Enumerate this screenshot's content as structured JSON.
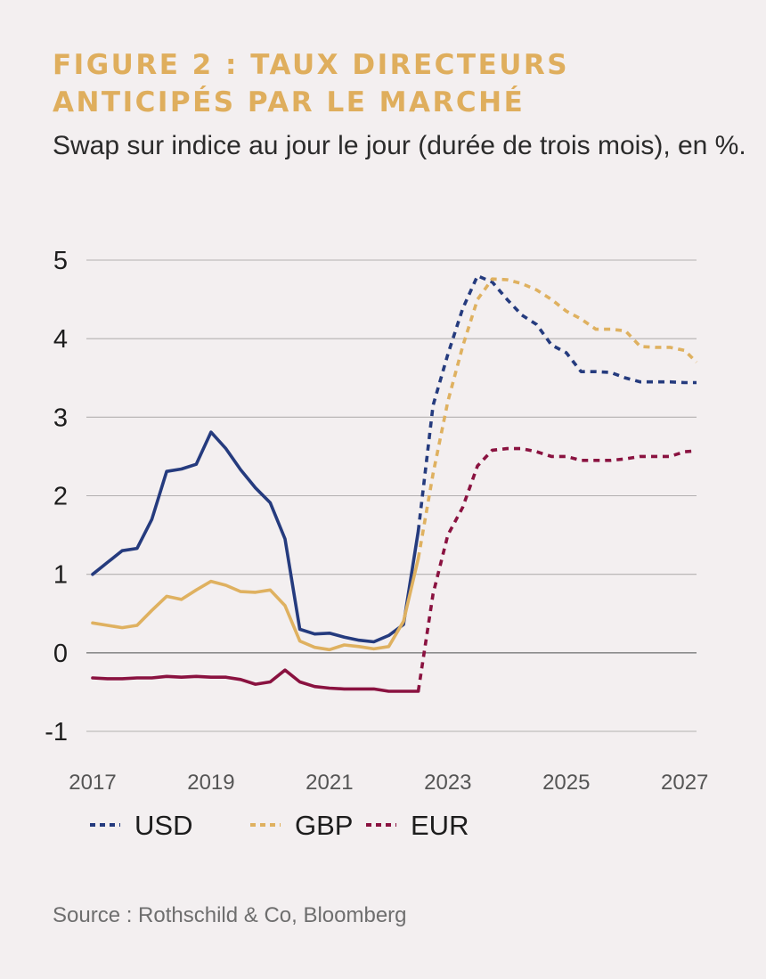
{
  "title": "FIGURE 2 : TAUX DIRECTEURS ANTICIPÉS PAR LE MARCHÉ",
  "subtitle": "Swap sur indice au jour le jour (durée de trois mois), en %.",
  "source": "Source : Rothschild & Co, Bloomberg",
  "chart_data": {
    "type": "line",
    "title": "FIGURE 2 : TAUX DIRECTEURS ANTICIPÉS PAR LE MARCHÉ",
    "subtitle": "Swap sur indice au jour le jour (durée de trois mois), en %.",
    "xlabel": "",
    "ylabel": "",
    "ylim": [
      -1,
      5
    ],
    "yticks": [
      "5",
      "4",
      "3",
      "2",
      "1",
      "0",
      "-1"
    ],
    "xlim": [
      2017,
      2027.2
    ],
    "xticks": [
      "2017",
      "2019",
      "2021",
      "2023",
      "2025",
      "2027"
    ],
    "grid": true,
    "legend_position": "bottom",
    "forecast_start": 2022.5,
    "series": [
      {
        "name": "USD",
        "color": "#253b7e",
        "x": [
          2017.0,
          2017.25,
          2017.5,
          2017.75,
          2018.0,
          2018.25,
          2018.5,
          2018.75,
          2019.0,
          2019.25,
          2019.5,
          2019.75,
          2020.0,
          2020.25,
          2020.5,
          2020.75,
          2021.0,
          2021.25,
          2021.5,
          2021.75,
          2022.0,
          2022.25,
          2022.5,
          2022.75,
          2023.0,
          2023.25,
          2023.5,
          2023.75,
          2024.0,
          2024.25,
          2024.5,
          2024.75,
          2025.0,
          2025.25,
          2025.5,
          2025.75,
          2026.0,
          2026.25,
          2026.5,
          2026.75,
          2027.0,
          2027.2
        ],
        "values": [
          1.0,
          1.15,
          1.3,
          1.33,
          1.7,
          2.31,
          2.34,
          2.4,
          2.81,
          2.6,
          2.33,
          2.1,
          1.91,
          1.45,
          0.3,
          0.24,
          0.25,
          0.2,
          0.16,
          0.14,
          0.22,
          0.36,
          1.55,
          3.15,
          3.8,
          4.38,
          4.8,
          4.72,
          4.5,
          4.3,
          4.18,
          3.92,
          3.82,
          3.58,
          3.58,
          3.57,
          3.5,
          3.45,
          3.45,
          3.45,
          3.44,
          3.44
        ]
      },
      {
        "name": "GBP",
        "color": "#dfb160",
        "x": [
          2017.0,
          2017.25,
          2017.5,
          2017.75,
          2018.0,
          2018.25,
          2018.5,
          2018.75,
          2019.0,
          2019.25,
          2019.5,
          2019.75,
          2020.0,
          2020.25,
          2020.5,
          2020.75,
          2021.0,
          2021.25,
          2021.5,
          2021.75,
          2022.0,
          2022.25,
          2022.5,
          2022.75,
          2023.0,
          2023.25,
          2023.5,
          2023.75,
          2024.0,
          2024.25,
          2024.5,
          2024.75,
          2025.0,
          2025.25,
          2025.5,
          2025.75,
          2026.0,
          2026.25,
          2026.5,
          2026.75,
          2027.0,
          2027.2
        ],
        "values": [
          0.38,
          0.35,
          0.32,
          0.35,
          0.54,
          0.72,
          0.68,
          0.8,
          0.91,
          0.86,
          0.78,
          0.77,
          0.8,
          0.6,
          0.15,
          0.07,
          0.04,
          0.1,
          0.08,
          0.05,
          0.08,
          0.4,
          1.2,
          2.28,
          3.2,
          3.9,
          4.5,
          4.76,
          4.75,
          4.7,
          4.62,
          4.5,
          4.35,
          4.25,
          4.12,
          4.12,
          4.1,
          3.9,
          3.89,
          3.89,
          3.85,
          3.7
        ]
      },
      {
        "name": "EUR",
        "color": "#8a1240",
        "x": [
          2017.0,
          2017.25,
          2017.5,
          2017.75,
          2018.0,
          2018.25,
          2018.5,
          2018.75,
          2019.0,
          2019.25,
          2019.5,
          2019.75,
          2020.0,
          2020.25,
          2020.5,
          2020.75,
          2021.0,
          2021.25,
          2021.5,
          2021.75,
          2022.0,
          2022.25,
          2022.5,
          2022.75,
          2023.0,
          2023.25,
          2023.5,
          2023.75,
          2024.0,
          2024.25,
          2024.5,
          2024.75,
          2025.0,
          2025.25,
          2025.5,
          2025.75,
          2026.0,
          2026.25,
          2026.5,
          2026.75,
          2027.0,
          2027.2
        ],
        "values": [
          -0.32,
          -0.33,
          -0.33,
          -0.32,
          -0.32,
          -0.3,
          -0.31,
          -0.3,
          -0.31,
          -0.31,
          -0.34,
          -0.4,
          -0.37,
          -0.22,
          -0.37,
          -0.43,
          -0.45,
          -0.46,
          -0.46,
          -0.46,
          -0.49,
          -0.49,
          -0.49,
          0.75,
          1.5,
          1.85,
          2.38,
          2.58,
          2.6,
          2.6,
          2.56,
          2.5,
          2.5,
          2.45,
          2.45,
          2.45,
          2.47,
          2.5,
          2.5,
          2.5,
          2.56,
          2.57
        ]
      }
    ]
  }
}
